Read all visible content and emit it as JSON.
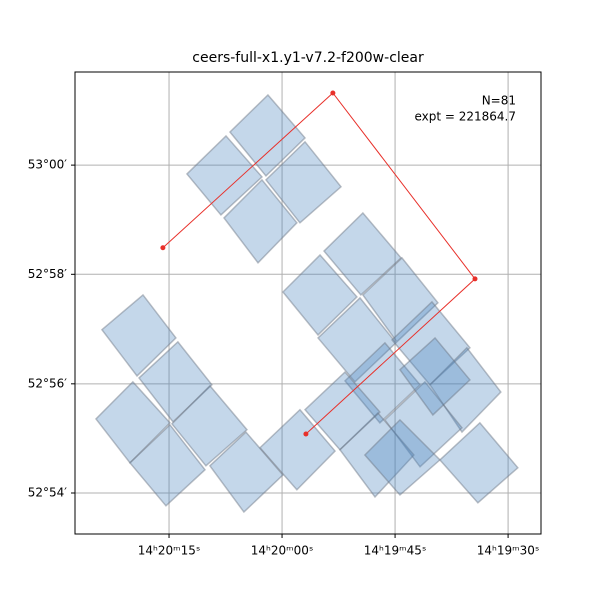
{
  "chart_data": {
    "type": "footprint",
    "title": "ceers-full-x1.y1-v7.2-f200w-clear",
    "annotations": [
      "N=81",
      "expt = 221864.7"
    ],
    "xlim": [
      215.1145,
      214.8568
    ],
    "ylim": [
      52.8875,
      53.0284
    ],
    "xticks": [
      {
        "value": 215.0625,
        "label": "14ʰ20ᵐ15ˢ"
      },
      {
        "value": 215.0,
        "label": "14ʰ20ᵐ00ˢ"
      },
      {
        "value": 214.9375,
        "label": "14ʰ19ᵐ45ˢ"
      },
      {
        "value": 214.875,
        "label": "14ʰ19ᵐ30ˢ"
      }
    ],
    "yticks": [
      {
        "value": 52.9,
        "label": "52°54′"
      },
      {
        "value": 52.9333,
        "label": "52°56′"
      },
      {
        "value": 52.9667,
        "label": "52°58′"
      },
      {
        "value": 53.0,
        "label": "53°00′"
      }
    ],
    "grid": true,
    "footprint_color": "#4682be",
    "footprint_alpha": 0.32,
    "footprints": [
      {
        "ra": [
          215.0526,
          215.031,
          215.0111,
          215.0338
        ],
        "dec": [
          52.9973,
          53.0089,
          52.9964,
          52.9848
        ]
      },
      {
        "ra": [
          215.0288,
          215.0078,
          214.9873,
          215.0089
        ],
        "dec": [
          53.0101,
          53.0214,
          53.0083,
          52.9967
        ]
      },
      {
        "ra": [
          215.0089,
          214.9873,
          214.9674,
          214.9901
        ],
        "dec": [
          52.9955,
          53.0071,
          52.9934,
          52.9824
        ]
      },
      {
        "ra": [
          215.0321,
          215.0111,
          214.9918,
          215.0133
        ],
        "dec": [
          52.9839,
          52.9955,
          52.9824,
          52.9702
        ]
      },
      {
        "ra": [
          214.9995,
          214.979,
          214.9586,
          214.9801
        ],
        "dec": [
          52.9613,
          52.9726,
          52.9598,
          52.9482
        ]
      },
      {
        "ra": [
          214.9768,
          214.9553,
          214.9342,
          214.9564
        ],
        "dec": [
          52.9738,
          52.9854,
          52.9717,
          52.9604
        ]
      },
      {
        "ra": [
          214.9801,
          214.9569,
          214.937,
          214.9597
        ],
        "dec": [
          52.9473,
          52.9595,
          52.9458,
          52.9339
        ]
      },
      {
        "ra": [
          214.9553,
          214.9337,
          214.9138,
          214.9365
        ],
        "dec": [
          52.9604,
          52.9717,
          52.958,
          52.9461
        ]
      },
      {
        "ra": [
          214.9392,
          214.9171,
          214.8961,
          214.9182
        ],
        "dec": [
          52.9467,
          52.9583,
          52.9443,
          52.933
        ]
      },
      {
        "ra": [
          214.9182,
          214.8978,
          214.879,
          214.9005
        ],
        "dec": [
          52.933,
          52.9443,
          52.9308,
          52.9186
        ]
      },
      {
        "ra": [
          214.9652,
          214.9431,
          214.9237,
          214.9459
        ],
        "dec": [
          52.9342,
          52.9458,
          52.933,
          52.9214
        ]
      },
      {
        "ra": [
          214.9431,
          214.921,
          214.9005,
          214.9237
        ],
        "dec": [
          52.9223,
          52.9339,
          52.9199,
          52.908
        ]
      },
      {
        "ra": [
          214.968,
          214.947,
          214.9271,
          214.9486
        ],
        "dec": [
          52.9132,
          52.9244,
          52.9116,
          52.8988
        ]
      },
      {
        "ra": [
          214.9348,
          214.9154,
          214.8961,
          214.9166
        ],
        "dec": [
          52.9376,
          52.9473,
          52.9345,
          52.9238
        ]
      },
      {
        "ra": [
          214.9542,
          214.9348,
          214.9127,
          214.9348
        ],
        "dec": [
          52.9116,
          52.9223,
          52.9101,
          52.8994
        ]
      },
      {
        "ra": [
          214.9127,
          214.8906,
          214.8696,
          214.8917
        ],
        "dec": [
          52.9101,
          52.9214,
          52.9077,
          52.897
        ]
      },
      {
        "ra": [
          214.9873,
          214.9652,
          214.9459,
          214.968
        ],
        "dec": [
          52.9254,
          52.9369,
          52.9247,
          52.9132
        ]
      },
      {
        "ra": [
          215.0122,
          214.9901,
          214.9707,
          214.9918
        ],
        "dec": [
          52.9138,
          52.9254,
          52.9128,
          52.901
        ]
      },
      {
        "ra": [
          215.0996,
          215.0769,
          215.0587,
          215.0802
        ],
        "dec": [
          52.9498,
          52.9604,
          52.9473,
          52.9357
        ]
      },
      {
        "ra": [
          215.0791,
          215.0576,
          215.0388,
          215.0603
        ],
        "dec": [
          52.9351,
          52.9461,
          52.933,
          52.9217
        ]
      },
      {
        "ra": [
          215.1029,
          215.0825,
          215.062,
          215.0841
        ],
        "dec": [
          52.9226,
          52.9339,
          52.9214,
          52.9092
        ]
      },
      {
        "ra": [
          215.0841,
          215.062,
          215.0426,
          215.0642
        ],
        "dec": [
          52.9092,
          52.9208,
          52.9071,
          52.8961
        ]
      },
      {
        "ra": [
          215.0609,
          215.0399,
          215.0194,
          215.0421
        ],
        "dec": [
          52.9211,
          52.9327,
          52.9193,
          52.9083
        ]
      },
      {
        "ra": [
          215.0399,
          215.02,
          214.9995,
          215.0211
        ],
        "dec": [
          52.9083,
          52.9186,
          52.9055,
          52.8942
        ]
      }
    ],
    "outline": {
      "color": "#e8302a",
      "ra": [
        215.0659,
        214.9719,
        214.8933,
        214.9868
      ],
      "dec": [
        52.9748,
        53.022,
        52.9653,
        52.918
      ]
    }
  }
}
